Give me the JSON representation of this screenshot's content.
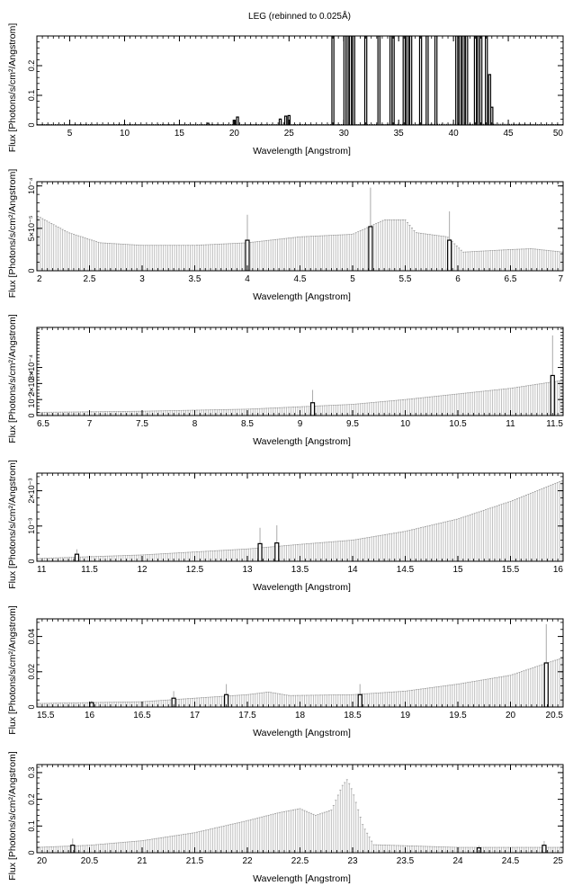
{
  "title": "LEG (rebinned to 0.025Å)",
  "chart_data": [
    {
      "type": "bar",
      "xlabel": "Wavelength [Angstrom]",
      "ylabel": "Flux [Photons/s/cm²/Angstrom]",
      "xlim": [
        2,
        50
      ],
      "ylim": [
        0,
        0.3
      ],
      "xticks": [
        5,
        10,
        15,
        20,
        25,
        30,
        35,
        40,
        45,
        50
      ],
      "yticks": [
        {
          "v": 0,
          "label": "0"
        },
        {
          "v": 0.1,
          "label": "0.1"
        },
        {
          "v": 0.2,
          "label": "0.2"
        }
      ],
      "error_bars": false,
      "baseline": [
        [
          2,
          0.003
        ],
        [
          28,
          0.003
        ],
        [
          43.5,
          0.004
        ],
        [
          50,
          0.003
        ]
      ],
      "features": [
        {
          "x": 17.6,
          "y": 0.006
        },
        {
          "x": 20.0,
          "y": 0.016
        },
        {
          "x": 20.3,
          "y": 0.027
        },
        {
          "x": 24.2,
          "y": 0.02
        },
        {
          "x": 24.7,
          "y": 0.03
        },
        {
          "x": 25.0,
          "y": 0.032
        },
        {
          "x": 29.0,
          "y": 0.3
        },
        {
          "x": 30.1,
          "y": 0.3
        },
        {
          "x": 30.3,
          "y": 0.3
        },
        {
          "x": 30.6,
          "y": 0.3
        },
        {
          "x": 30.9,
          "y": 0.3
        },
        {
          "x": 32.0,
          "y": 0.3
        },
        {
          "x": 33.2,
          "y": 0.3
        },
        {
          "x": 34.3,
          "y": 0.3
        },
        {
          "x": 34.5,
          "y": 0.3
        },
        {
          "x": 35.5,
          "y": 0.3
        },
        {
          "x": 35.8,
          "y": 0.3
        },
        {
          "x": 36.1,
          "y": 0.3
        },
        {
          "x": 37.0,
          "y": 0.3
        },
        {
          "x": 37.6,
          "y": 0.3
        },
        {
          "x": 38.4,
          "y": 0.3
        },
        {
          "x": 40.3,
          "y": 0.3
        },
        {
          "x": 40.6,
          "y": 0.3
        },
        {
          "x": 40.9,
          "y": 0.3
        },
        {
          "x": 41.2,
          "y": 0.3
        },
        {
          "x": 42.0,
          "y": 0.3
        },
        {
          "x": 42.3,
          "y": 0.3
        },
        {
          "x": 42.5,
          "y": 0.3
        },
        {
          "x": 43.0,
          "y": 0.3
        },
        {
          "x": 43.3,
          "y": 0.17
        },
        {
          "x": 43.5,
          "y": 0.06
        }
      ]
    },
    {
      "type": "bar",
      "xlabel": "Wavelength [Angstrom]",
      "ylabel": "Flux [Photons/s/cm²/Angstrom]",
      "xlim": [
        2,
        7
      ],
      "ylim": [
        0,
        0.000105
      ],
      "xticks": [
        2,
        2.5,
        3,
        3.5,
        4,
        4.5,
        5,
        5.5,
        6,
        6.5,
        7
      ],
      "yticks": [
        {
          "v": 0,
          "label": "0"
        },
        {
          "v": 5e-05,
          "label": "5×10⁻⁵"
        },
        {
          "v": 0.0001,
          "label": "10⁻⁴"
        }
      ],
      "error_bars": true,
      "envelope": [
        [
          2,
          6.5e-05
        ],
        [
          2.3,
          4.5e-05
        ],
        [
          2.6,
          3.3e-05
        ],
        [
          3,
          3e-05
        ],
        [
          3.5,
          3e-05
        ],
        [
          4,
          3.3e-05
        ],
        [
          4.5,
          4e-05
        ],
        [
          5,
          4.3e-05
        ],
        [
          5.3,
          6e-05
        ],
        [
          5.5,
          6e-05
        ],
        [
          5.6,
          4.5e-05
        ],
        [
          5.9,
          4e-05
        ],
        [
          6.05,
          2.2e-05
        ],
        [
          6.5,
          2.5e-05
        ],
        [
          6.7,
          2.6e-05
        ],
        [
          7,
          2.2e-05
        ]
      ],
      "features": [
        {
          "x": 4.0,
          "y": 3.6e-05,
          "err": 3e-05
        },
        {
          "x": 5.17,
          "y": 5.2e-05,
          "err": 4.6e-05
        },
        {
          "x": 5.92,
          "y": 3.6e-05,
          "err": 3.4e-05
        }
      ]
    },
    {
      "type": "bar",
      "xlabel": "Wavelength [Angstrom]",
      "ylabel": "Flux [Photons/s/cm²/Angstrom]",
      "xlim": [
        6.5,
        11.5
      ],
      "ylim": [
        0,
        0.00055
      ],
      "xticks": [
        6.5,
        7,
        7.5,
        8,
        8.5,
        9,
        9.5,
        10,
        10.5,
        11,
        11.5
      ],
      "yticks": [
        {
          "v": 0,
          "label": "0"
        },
        {
          "v": 0.0001,
          "label": "10⁻⁴"
        },
        {
          "v": 0.0002,
          "label": "2×10⁻⁴"
        },
        {
          "v": 0.0003,
          "label": "3×10⁻⁴"
        }
      ],
      "error_bars": true,
      "envelope": [
        [
          6.5,
          2e-05
        ],
        [
          7.5,
          2.7e-05
        ],
        [
          8.5,
          4e-05
        ],
        [
          9.5,
          7e-05
        ],
        [
          10,
          0.0001
        ],
        [
          10.5,
          0.000135
        ],
        [
          11,
          0.00017
        ],
        [
          11.5,
          0.00022
        ]
      ],
      "features": [
        {
          "x": 9.12,
          "y": 8e-05,
          "err": 8e-05
        },
        {
          "x": 11.4,
          "y": 0.00025,
          "err": 0.00025
        }
      ]
    },
    {
      "type": "bar",
      "xlabel": "Wavelength [Angstrom]",
      "ylabel": "Flux [Photons/s/cm²/Angstrom]",
      "xlim": [
        11,
        16
      ],
      "ylim": [
        0,
        0.0025
      ],
      "xticks": [
        11,
        11.5,
        12,
        12.5,
        13,
        13.5,
        14,
        14.5,
        15,
        15.5,
        16
      ],
      "yticks": [
        {
          "v": 0,
          "label": "0"
        },
        {
          "v": 0.001,
          "label": "10⁻³"
        },
        {
          "v": 0.002,
          "label": "2×10⁻³"
        }
      ],
      "error_bars": true,
      "envelope": [
        [
          11,
          8e-05
        ],
        [
          12,
          0.00018
        ],
        [
          13,
          0.00035
        ],
        [
          13.5,
          0.00048
        ],
        [
          14,
          0.0006
        ],
        [
          14.5,
          0.00085
        ],
        [
          15,
          0.0012
        ],
        [
          15.5,
          0.0017
        ],
        [
          16,
          0.0023
        ]
      ],
      "features": [
        {
          "x": 11.38,
          "y": 0.0002,
          "err": 0.00014
        },
        {
          "x": 13.12,
          "y": 0.0005,
          "err": 0.00045
        },
        {
          "x": 13.28,
          "y": 0.00052,
          "err": 0.0005
        }
      ]
    },
    {
      "type": "bar",
      "xlabel": "Wavelength [Angstrom]",
      "ylabel": "Flux [Photons/s/cm²/Angstrom]",
      "xlim": [
        15.5,
        20.5
      ],
      "ylim": [
        0,
        0.05
      ],
      "xticks": [
        15.5,
        16,
        16.5,
        17,
        17.5,
        18,
        18.5,
        19,
        19.5,
        20,
        20.5
      ],
      "yticks": [
        {
          "v": 0,
          "label": "0"
        },
        {
          "v": 0.02,
          "label": "0.02"
        },
        {
          "v": 0.04,
          "label": "0.04"
        }
      ],
      "error_bars": true,
      "envelope": [
        [
          15.5,
          0.002
        ],
        [
          16.5,
          0.003
        ],
        [
          17,
          0.005
        ],
        [
          17.5,
          0.007
        ],
        [
          17.7,
          0.0085
        ],
        [
          17.9,
          0.0065
        ],
        [
          18.5,
          0.007
        ],
        [
          19,
          0.009
        ],
        [
          19.5,
          0.013
        ],
        [
          20,
          0.018
        ],
        [
          20.5,
          0.028
        ]
      ],
      "features": [
        {
          "x": 16.02,
          "y": 0.0025,
          "err": 0.001
        },
        {
          "x": 16.8,
          "y": 0.005,
          "err": 0.004
        },
        {
          "x": 17.3,
          "y": 0.007,
          "err": 0.006
        },
        {
          "x": 18.57,
          "y": 0.007,
          "err": 0.006
        },
        {
          "x": 20.34,
          "y": 0.025,
          "err": 0.022
        }
      ]
    },
    {
      "type": "bar",
      "xlabel": "Wavelength [Angstrom]",
      "ylabel": "Flux [Photons/s/cm²/Angstrom]",
      "xlim": [
        20,
        25
      ],
      "ylim": [
        0,
        0.33
      ],
      "xticks": [
        20,
        20.5,
        21,
        21.5,
        22,
        22.5,
        23,
        23.5,
        24,
        24.5,
        25
      ],
      "yticks": [
        {
          "v": 0,
          "label": "0"
        },
        {
          "v": 0.1,
          "label": "0.1"
        },
        {
          "v": 0.2,
          "label": "0.2"
        },
        {
          "v": 0.3,
          "label": "0.3"
        }
      ],
      "error_bars": true,
      "envelope": [
        [
          20,
          0.02
        ],
        [
          20.5,
          0.028
        ],
        [
          21,
          0.045
        ],
        [
          21.5,
          0.075
        ],
        [
          22,
          0.12
        ],
        [
          22.3,
          0.15
        ],
        [
          22.5,
          0.165
        ],
        [
          22.65,
          0.14
        ],
        [
          22.8,
          0.16
        ],
        [
          22.9,
          0.25
        ],
        [
          22.95,
          0.275
        ],
        [
          23.0,
          0.23
        ],
        [
          23.1,
          0.1
        ],
        [
          23.2,
          0.03
        ],
        [
          24,
          0.02
        ],
        [
          25,
          0.02
        ]
      ],
      "features": [
        {
          "x": 20.34,
          "y": 0.028,
          "err": 0.025
        },
        {
          "x": 24.2,
          "y": 0.018,
          "err": 0.008
        },
        {
          "x": 24.82,
          "y": 0.028,
          "err": 0.016
        }
      ]
    }
  ]
}
